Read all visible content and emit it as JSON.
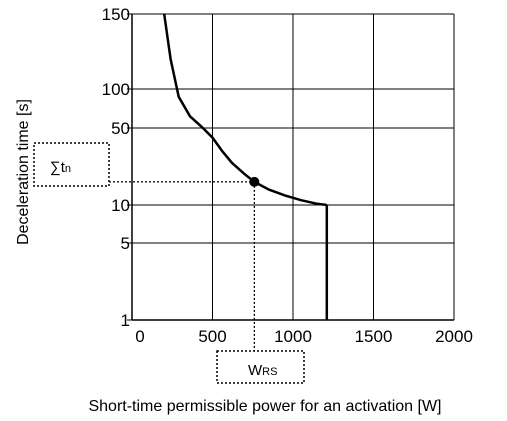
{
  "chart_data": {
    "type": "line",
    "title": "",
    "xlabel": "Short-time permissible power for an activation [W]",
    "ylabel": "Deceleration time [s]",
    "xlim": [
      0,
      2000
    ],
    "y_tick_values": [
      1,
      5,
      10,
      50,
      100,
      150
    ],
    "x_ticks": [
      {
        "value": 0,
        "label": "0"
      },
      {
        "value": 500,
        "label": "500"
      },
      {
        "value": 1000,
        "label": "1000"
      },
      {
        "value": 1500,
        "label": "1500"
      },
      {
        "value": 2000,
        "label": "2000"
      }
    ],
    "y_ticks": [
      {
        "value": 1,
        "label": "1"
      },
      {
        "value": 5,
        "label": "5"
      },
      {
        "value": 10,
        "label": "10"
      },
      {
        "value": 50,
        "label": "50"
      },
      {
        "value": 100,
        "label": "100"
      },
      {
        "value": 150,
        "label": "150"
      }
    ],
    "grid": true,
    "series": [
      {
        "curve": [
          [
            200,
            150
          ],
          [
            240,
            120
          ],
          [
            290,
            90
          ],
          [
            360,
            65
          ],
          [
            430,
            52
          ],
          [
            500,
            45
          ],
          [
            560,
            38
          ],
          [
            620,
            32
          ],
          [
            700,
            26
          ],
          [
            760,
            22
          ],
          [
            850,
            18
          ],
          [
            950,
            15
          ],
          [
            1050,
            12.5
          ],
          [
            1150,
            10.6
          ],
          [
            1210,
            10
          ]
        ],
        "vertical": [
          [
            1210,
            10
          ],
          [
            1210,
            1
          ]
        ]
      }
    ],
    "point": {
      "x": 760,
      "y": 22
    },
    "annotations": {
      "y_marker_symbol": "∑t",
      "y_marker_sub": "n",
      "x_marker_symbol": "W",
      "x_marker_sub": "RS"
    }
  }
}
